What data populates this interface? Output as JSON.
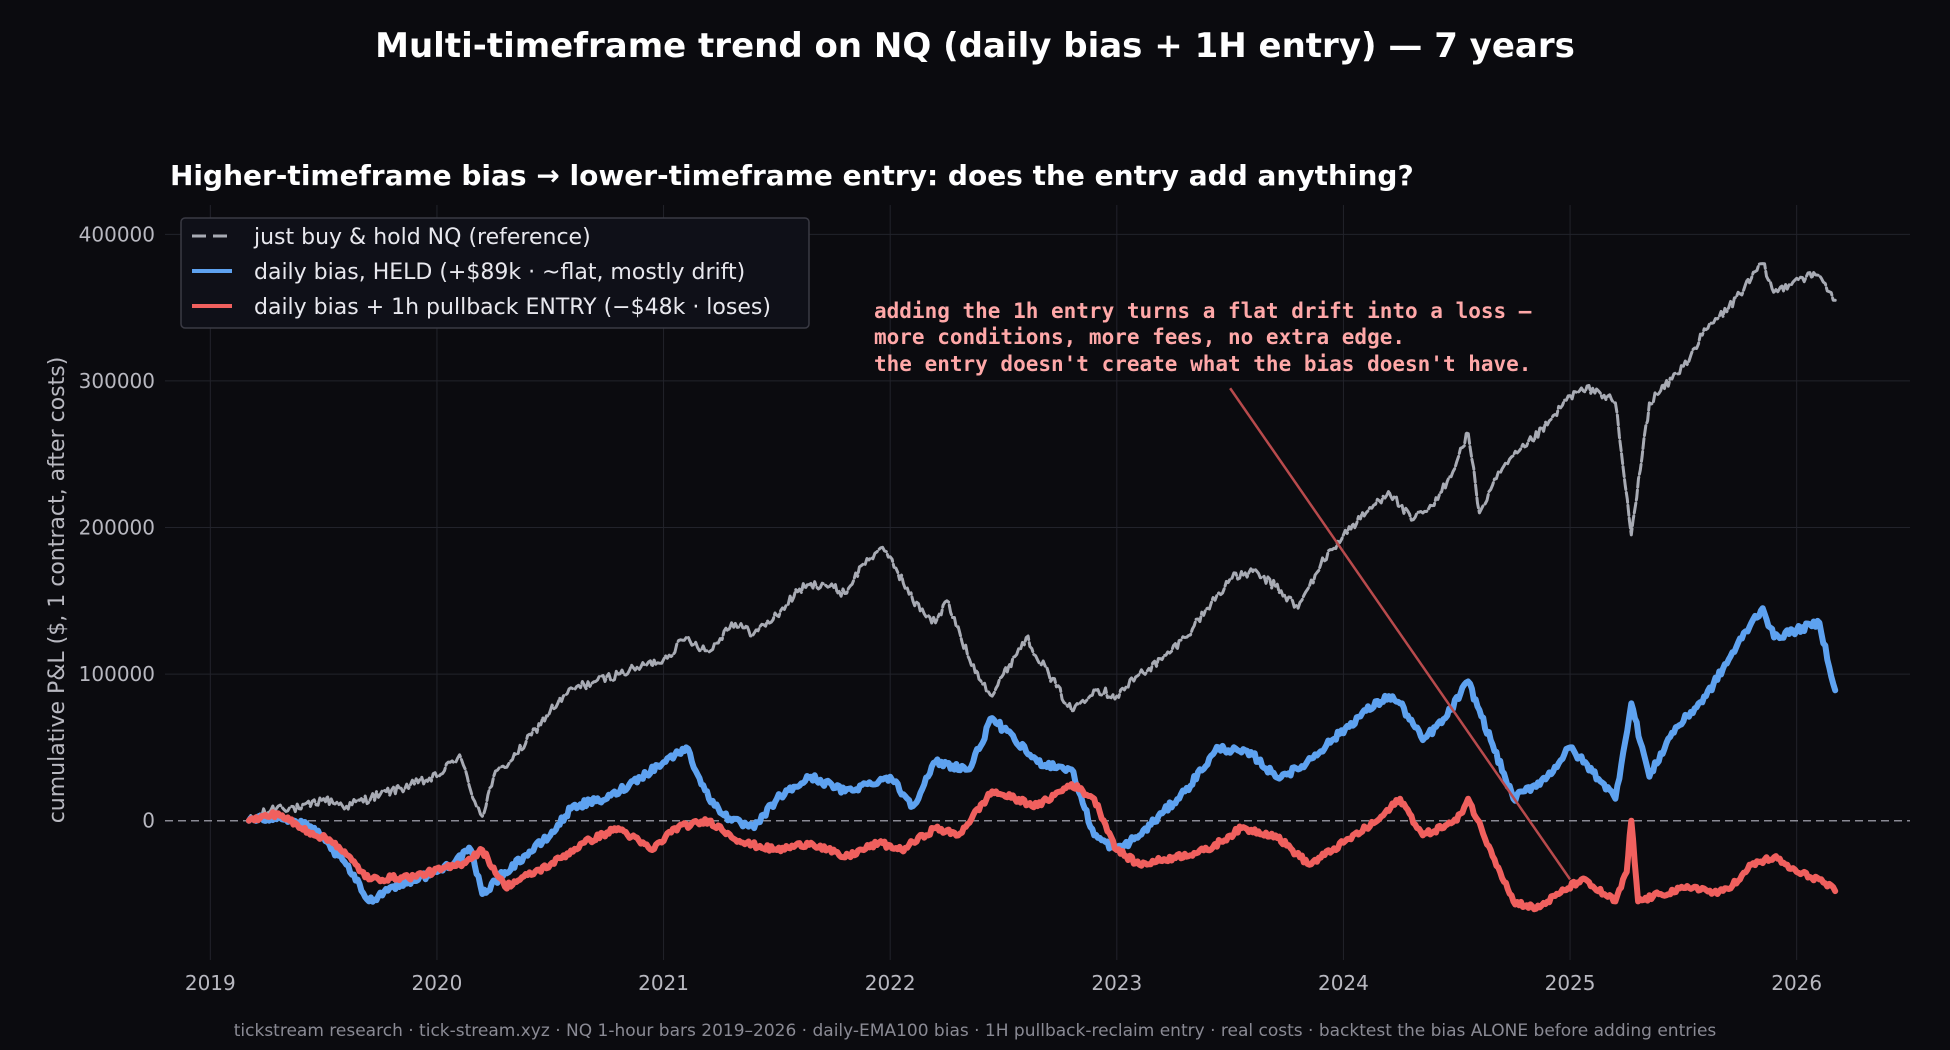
{
  "chart_data": {
    "type": "line",
    "title": "Multi-timeframe trend on NQ (daily bias + 1H entry) — 7 years",
    "subtitle": "Higher-timeframe bias → lower-timeframe entry: does the entry add anything?",
    "ylabel": "cumulative P&L ($, 1 contract, after costs)",
    "xlabel": "",
    "xlim": [
      2018.8,
      2026.5
    ],
    "ylim": [
      -95000,
      420000
    ],
    "x_ticks": [
      2019,
      2020,
      2021,
      2022,
      2023,
      2024,
      2025,
      2026
    ],
    "x_tick_labels": [
      "2019",
      "2020",
      "2021",
      "2022",
      "2023",
      "2024",
      "2025",
      "2026"
    ],
    "y_ticks": [
      0,
      100000,
      200000,
      300000,
      400000
    ],
    "y_tick_labels": [
      "0",
      "100000",
      "200000",
      "300000",
      "400000"
    ],
    "grid": true,
    "zero_line": true,
    "legend_position": "upper-left",
    "series": [
      {
        "name": "just buy & hold NQ (reference)",
        "color": "#a8abb4",
        "style": "dashed",
        "x": [
          2019.17,
          2019.3,
          2019.4,
          2019.5,
          2019.6,
          2019.75,
          2019.9,
          2020.0,
          2020.1,
          2020.15,
          2020.2,
          2020.25,
          2020.35,
          2020.5,
          2020.6,
          2020.7,
          2020.8,
          2020.9,
          2021.0,
          2021.1,
          2021.2,
          2021.3,
          2021.4,
          2021.5,
          2021.6,
          2021.7,
          2021.8,
          2021.88,
          2021.95,
          2022.0,
          2022.1,
          2022.2,
          2022.25,
          2022.35,
          2022.45,
          2022.5,
          2022.6,
          2022.7,
          2022.8,
          2022.9,
          2023.0,
          2023.1,
          2023.2,
          2023.3,
          2023.4,
          2023.5,
          2023.6,
          2023.7,
          2023.8,
          2023.9,
          2024.0,
          2024.1,
          2024.2,
          2024.3,
          2024.4,
          2024.5,
          2024.55,
          2024.6,
          2024.7,
          2024.8,
          2024.9,
          2025.0,
          2025.1,
          2025.2,
          2025.27,
          2025.35,
          2025.5,
          2025.6,
          2025.7,
          2025.8,
          2025.85,
          2025.9,
          2026.0,
          2026.1,
          2026.17
        ],
        "y": [
          0,
          10000,
          8000,
          15000,
          10000,
          18000,
          25000,
          30000,
          45000,
          20000,
          3000,
          30000,
          45000,
          75000,
          90000,
          95000,
          100000,
          105000,
          110000,
          125000,
          115000,
          135000,
          128000,
          140000,
          158000,
          162000,
          155000,
          175000,
          185000,
          180000,
          150000,
          135000,
          150000,
          110000,
          85000,
          100000,
          125000,
          100000,
          75000,
          90000,
          85000,
          100000,
          110000,
          125000,
          145000,
          165000,
          170000,
          160000,
          145000,
          175000,
          195000,
          210000,
          225000,
          205000,
          215000,
          245000,
          265000,
          210000,
          240000,
          255000,
          270000,
          290000,
          295000,
          285000,
          195000,
          285000,
          310000,
          335000,
          350000,
          370000,
          380000,
          360000,
          370000,
          372000,
          355000
        ]
      },
      {
        "name": "daily bias, HELD  (+$89k · ~flat, mostly drift)",
        "color": "#5ea2f0",
        "style": "solid",
        "x": [
          2019.17,
          2019.3,
          2019.45,
          2019.6,
          2019.7,
          2019.8,
          2020.0,
          2020.15,
          2020.2,
          2020.3,
          2020.5,
          2020.6,
          2020.75,
          2020.85,
          2021.0,
          2021.1,
          2021.2,
          2021.3,
          2021.4,
          2021.5,
          2021.65,
          2021.8,
          2021.9,
          2022.0,
          2022.1,
          2022.2,
          2022.35,
          2022.45,
          2022.55,
          2022.65,
          2022.8,
          2022.9,
          2023.0,
          2023.1,
          2023.2,
          2023.3,
          2023.45,
          2023.6,
          2023.7,
          2023.8,
          2023.95,
          2024.1,
          2024.2,
          2024.25,
          2024.35,
          2024.45,
          2024.55,
          2024.65,
          2024.75,
          2024.9,
          2025.0,
          2025.15,
          2025.2,
          2025.27,
          2025.35,
          2025.45,
          2025.6,
          2025.7,
          2025.8,
          2025.85,
          2025.9,
          2026.0,
          2026.1,
          2026.17
        ],
        "y": [
          0,
          3000,
          -5000,
          -30000,
          -55000,
          -45000,
          -35000,
          -20000,
          -50000,
          -35000,
          -10000,
          10000,
          15000,
          25000,
          40000,
          50000,
          15000,
          0,
          -5000,
          15000,
          30000,
          20000,
          25000,
          30000,
          10000,
          40000,
          35000,
          70000,
          55000,
          40000,
          35000,
          -10000,
          -20000,
          -10000,
          5000,
          20000,
          50000,
          45000,
          30000,
          35000,
          55000,
          75000,
          85000,
          80000,
          55000,
          70000,
          95000,
          55000,
          15000,
          30000,
          50000,
          25000,
          15000,
          80000,
          30000,
          60000,
          85000,
          110000,
          135000,
          145000,
          125000,
          130000,
          135000,
          89000
        ]
      },
      {
        "name": "daily bias + 1h pullback ENTRY  (−$48k · loses)",
        "color": "#f0605e",
        "style": "solid",
        "x": [
          2019.17,
          2019.3,
          2019.4,
          2019.55,
          2019.7,
          2019.9,
          2020.1,
          2020.2,
          2020.3,
          2020.5,
          2020.65,
          2020.8,
          2020.95,
          2021.05,
          2021.2,
          2021.35,
          2021.5,
          2021.65,
          2021.8,
          2021.95,
          2022.05,
          2022.2,
          2022.3,
          2022.45,
          2022.55,
          2022.65,
          2022.8,
          2022.9,
          2023.0,
          2023.1,
          2023.25,
          2023.4,
          2023.55,
          2023.7,
          2023.85,
          2024.0,
          2024.15,
          2024.25,
          2024.35,
          2024.5,
          2024.55,
          2024.65,
          2024.75,
          2024.85,
          2024.95,
          2025.05,
          2025.15,
          2025.2,
          2025.25,
          2025.27,
          2025.3,
          2025.4,
          2025.55,
          2025.65,
          2025.75,
          2025.8,
          2025.9,
          2026.0,
          2026.1,
          2026.17
        ],
        "y": [
          0,
          5000,
          -5000,
          -15000,
          -40000,
          -38000,
          -30000,
          -20000,
          -45000,
          -30000,
          -15000,
          -5000,
          -20000,
          -5000,
          0,
          -15000,
          -20000,
          -15000,
          -25000,
          -15000,
          -20000,
          -5000,
          -10000,
          20000,
          15000,
          10000,
          25000,
          15000,
          -20000,
          -30000,
          -25000,
          -20000,
          -5000,
          -10000,
          -30000,
          -15000,
          0,
          15000,
          -10000,
          0,
          15000,
          -20000,
          -55000,
          -60000,
          -50000,
          -40000,
          -50000,
          -55000,
          -35000,
          0,
          -55000,
          -50000,
          -45000,
          -50000,
          -40000,
          -30000,
          -25000,
          -35000,
          -40000,
          -48000
        ]
      }
    ],
    "annotation": {
      "lines": [
        "adding the 1h entry turns a flat drift into a loss —",
        "more conditions, more fees, no extra edge.",
        "the entry doesn't create what the bias doesn't have."
      ],
      "arrow_from": [
        2023.5,
        295000
      ],
      "arrow_to": [
        2025.0,
        -40000
      ],
      "color": "#ffa8a8"
    },
    "footer": "tickstream research · tick-stream.xyz · NQ 1-hour bars 2019–2026 · daily-EMA100 bias · 1H pullback-reclaim entry · real costs · backtest the bias ALONE before adding entries"
  }
}
